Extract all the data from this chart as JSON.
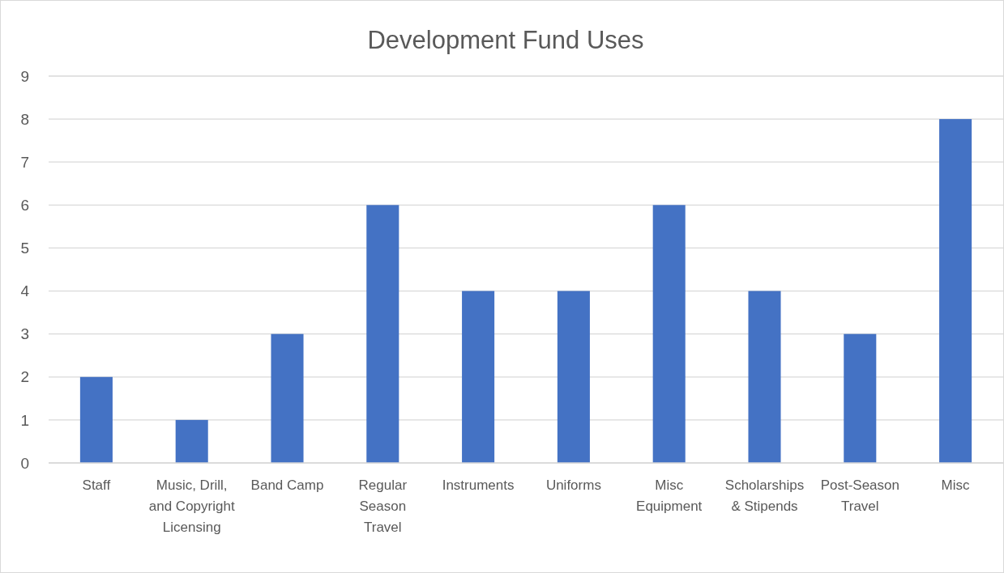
{
  "chart_data": {
    "type": "bar",
    "title": "Development Fund Uses",
    "categories": [
      "Staff",
      "Music, Drill, and Copyright Licensing",
      "Band Camp",
      "Regular Season Travel",
      "Instruments",
      "Uniforms",
      "Misc Equipment",
      "Scholarships & Stipends",
      "Post-Season Travel",
      "Misc"
    ],
    "values": [
      2,
      1,
      3,
      6,
      4,
      4,
      6,
      4,
      3,
      8
    ],
    "color": "#4472c4",
    "ylim": [
      0,
      9
    ],
    "yticks": [
      0,
      1,
      2,
      3,
      4,
      5,
      6,
      7,
      8,
      9
    ],
    "grid": "y"
  }
}
